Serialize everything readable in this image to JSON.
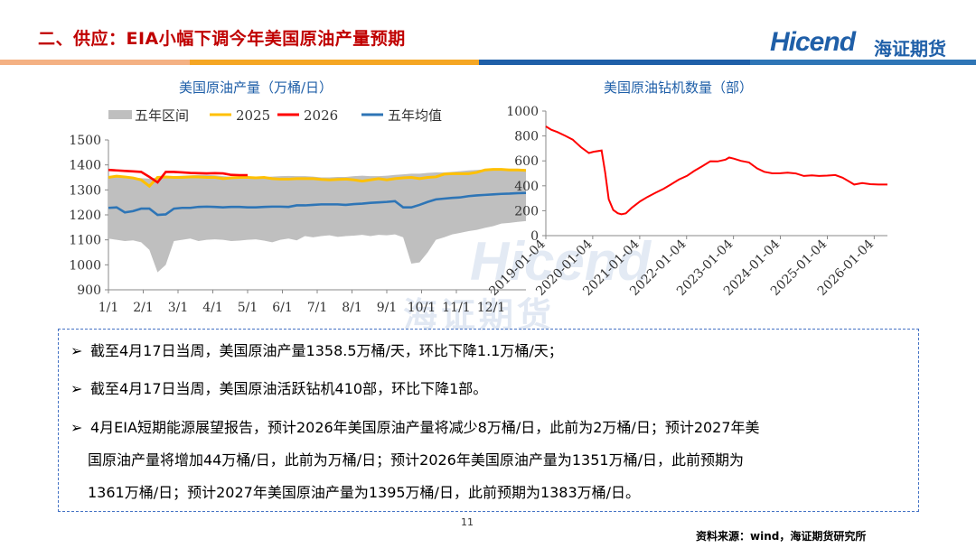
{
  "header": {
    "title": "二、供应：EIA小幅下调今年美国原油产量预期",
    "logo_text": "Hicend",
    "logo_cn": "海证期货",
    "stripe_colors": [
      "#f4b183",
      "#f5a623",
      "#1f5fa8",
      "#2e75b6"
    ]
  },
  "watermark": {
    "latin": "Hicend",
    "cn": "海证期货"
  },
  "chart_data": [
    {
      "type": "area",
      "title": "美国原油产量（万桶/日）",
      "legend": [
        "五年区间",
        "2025",
        "2026",
        "五年均值"
      ],
      "colors": {
        "range": "#bfbfbf",
        "y2025": "#ffc000",
        "y2026": "#ff0000",
        "avg": "#2e75b6"
      },
      "ylim": [
        900,
        1500
      ],
      "yticks": [
        "900",
        "1000",
        "1100",
        "1200",
        "1300",
        "1400",
        "1500"
      ],
      "xticks": [
        "1/1",
        "2/1",
        "3/1",
        "4/1",
        "5/1",
        "6/1",
        "7/1",
        "8/1",
        "9/1",
        "10/1",
        "11/1",
        "12/1"
      ],
      "weeks": 52,
      "range_upper": [
        1355,
        1358,
        1355,
        1350,
        1347,
        1345,
        1350,
        1352,
        1355,
        1357,
        1358,
        1360,
        1360,
        1358,
        1355,
        1352,
        1350,
        1348,
        1350,
        1352,
        1353,
        1355,
        1356,
        1355,
        1355,
        1353,
        1350,
        1350,
        1352,
        1352,
        1355,
        1357,
        1355,
        1355,
        1357,
        1360,
        1362,
        1365,
        1365,
        1368,
        1370,
        1370,
        1372,
        1375,
        1378,
        1380,
        1382,
        1383,
        1384,
        1385,
        1385,
        1383
      ],
      "range_lower": [
        1105,
        1100,
        1095,
        1098,
        1090,
        1060,
        970,
        1000,
        1095,
        1100,
        1105,
        1095,
        1100,
        1102,
        1100,
        1095,
        1097,
        1100,
        1102,
        1097,
        1090,
        1100,
        1105,
        1098,
        1115,
        1110,
        1115,
        1118,
        1112,
        1115,
        1117,
        1120,
        1115,
        1120,
        1118,
        1122,
        1110,
        1005,
        1010,
        1050,
        1100,
        1110,
        1122,
        1128,
        1135,
        1140,
        1148,
        1155,
        1165,
        1168,
        1172,
        1175
      ],
      "y2025": [
        1350,
        1355,
        1352,
        1348,
        1340,
        1315,
        1350,
        1352,
        1350,
        1350,
        1352,
        1352,
        1350,
        1350,
        1345,
        1348,
        1350,
        1350,
        1348,
        1350,
        1345,
        1343,
        1343,
        1345,
        1345,
        1345,
        1342,
        1340,
        1342,
        1343,
        1340,
        1335,
        1340,
        1345,
        1340,
        1345,
        1348,
        1350,
        1345,
        1350,
        1352,
        1363,
        1365,
        1365,
        1365,
        1370,
        1380,
        1382,
        1382,
        1380,
        1380,
        1378
      ],
      "y2026": [
        1380,
        1378,
        1376,
        1374,
        1372,
        1352,
        1330,
        1372,
        1372,
        1370,
        1368,
        1367,
        1366,
        1367,
        1366,
        1360,
        1359,
        1359
      ],
      "avg": [
        1228,
        1230,
        1210,
        1215,
        1225,
        1225,
        1200,
        1202,
        1225,
        1228,
        1228,
        1232,
        1233,
        1232,
        1230,
        1232,
        1232,
        1230,
        1230,
        1232,
        1233,
        1233,
        1232,
        1238,
        1238,
        1240,
        1242,
        1242,
        1242,
        1240,
        1243,
        1245,
        1248,
        1250,
        1252,
        1255,
        1230,
        1230,
        1240,
        1252,
        1262,
        1265,
        1268,
        1270,
        1275,
        1278,
        1280,
        1282,
        1284,
        1285,
        1287,
        1288
      ]
    },
    {
      "type": "line",
      "title": "美国原油钻机数量（部）",
      "ylim": [
        0,
        1000
      ],
      "yticks": [
        "0",
        "200",
        "400",
        "600",
        "800",
        "1000"
      ],
      "xticks": [
        "2019-01-04",
        "2020-01-04",
        "2021-01-04",
        "2022-01-04",
        "2023-01-04",
        "2024-01-04",
        "2025-01-04",
        "2026-01-04"
      ],
      "color": "#ff0000",
      "x_start": "2019-01-04",
      "x_end": "2026-04-17",
      "points": [
        [
          "2019-01-04",
          877
        ],
        [
          "2019-02-15",
          850
        ],
        [
          "2019-04-05",
          831
        ],
        [
          "2019-06-07",
          800
        ],
        [
          "2019-08-02",
          770
        ],
        [
          "2019-10-04",
          710
        ],
        [
          "2019-12-06",
          663
        ],
        [
          "2020-01-10",
          673
        ],
        [
          "2020-03-13",
          683
        ],
        [
          "2020-04-10",
          504
        ],
        [
          "2020-05-08",
          292
        ],
        [
          "2020-06-12",
          206
        ],
        [
          "2020-07-17",
          180
        ],
        [
          "2020-08-14",
          172
        ],
        [
          "2020-09-18",
          179
        ],
        [
          "2020-11-06",
          226
        ],
        [
          "2021-01-08",
          275
        ],
        [
          "2021-03-05",
          310
        ],
        [
          "2021-05-07",
          344
        ],
        [
          "2021-07-09",
          376
        ],
        [
          "2021-09-03",
          410
        ],
        [
          "2021-11-05",
          450
        ],
        [
          "2022-01-07",
          480
        ],
        [
          "2022-03-04",
          519
        ],
        [
          "2022-05-06",
          557
        ],
        [
          "2022-07-08",
          597
        ],
        [
          "2022-09-02",
          596
        ],
        [
          "2022-11-04",
          610
        ],
        [
          "2022-12-02",
          627
        ],
        [
          "2023-01-06",
          618
        ],
        [
          "2023-03-03",
          600
        ],
        [
          "2023-05-05",
          588
        ],
        [
          "2023-07-07",
          540
        ],
        [
          "2023-09-01",
          512
        ],
        [
          "2023-11-03",
          500
        ],
        [
          "2024-01-05",
          501
        ],
        [
          "2024-03-01",
          506
        ],
        [
          "2024-05-03",
          499
        ],
        [
          "2024-07-05",
          479
        ],
        [
          "2024-09-06",
          483
        ],
        [
          "2024-11-01",
          479
        ],
        [
          "2025-01-03",
          482
        ],
        [
          "2025-03-07",
          486
        ],
        [
          "2025-05-02",
          465
        ],
        [
          "2025-06-27",
          432
        ],
        [
          "2025-08-01",
          410
        ],
        [
          "2025-10-03",
          422
        ],
        [
          "2025-12-05",
          413
        ],
        [
          "2026-02-06",
          410
        ],
        [
          "2026-04-17",
          410
        ]
      ]
    }
  ],
  "bullets": [
    {
      "lines": [
        "截至4月17日当周，美国原油产量1358.5万桶/天，环比下降1.1万桶/天；"
      ]
    },
    {
      "lines": [
        "截至4月17日当周，美国原油活跃钻机410部，环比下降1部。"
      ]
    },
    {
      "lines": [
        "4月EIA短期能源展望报告，预计2026年美国原油产量将减少8万桶/日，此前为2万桶/日；预计2027年美",
        "国原油产量将增加44万桶/日，此前为万桶/日；预计2026年美国原油产量为1351万桶/日，此前预期为",
        "1361万桶/日；预计2027年美国原油产量为1395万桶/日，此前预期为1383万桶/日。"
      ]
    }
  ],
  "bullet_marker": "➢",
  "footer": {
    "page": "11",
    "source": "资料来源：wind，海证期货研究所"
  }
}
